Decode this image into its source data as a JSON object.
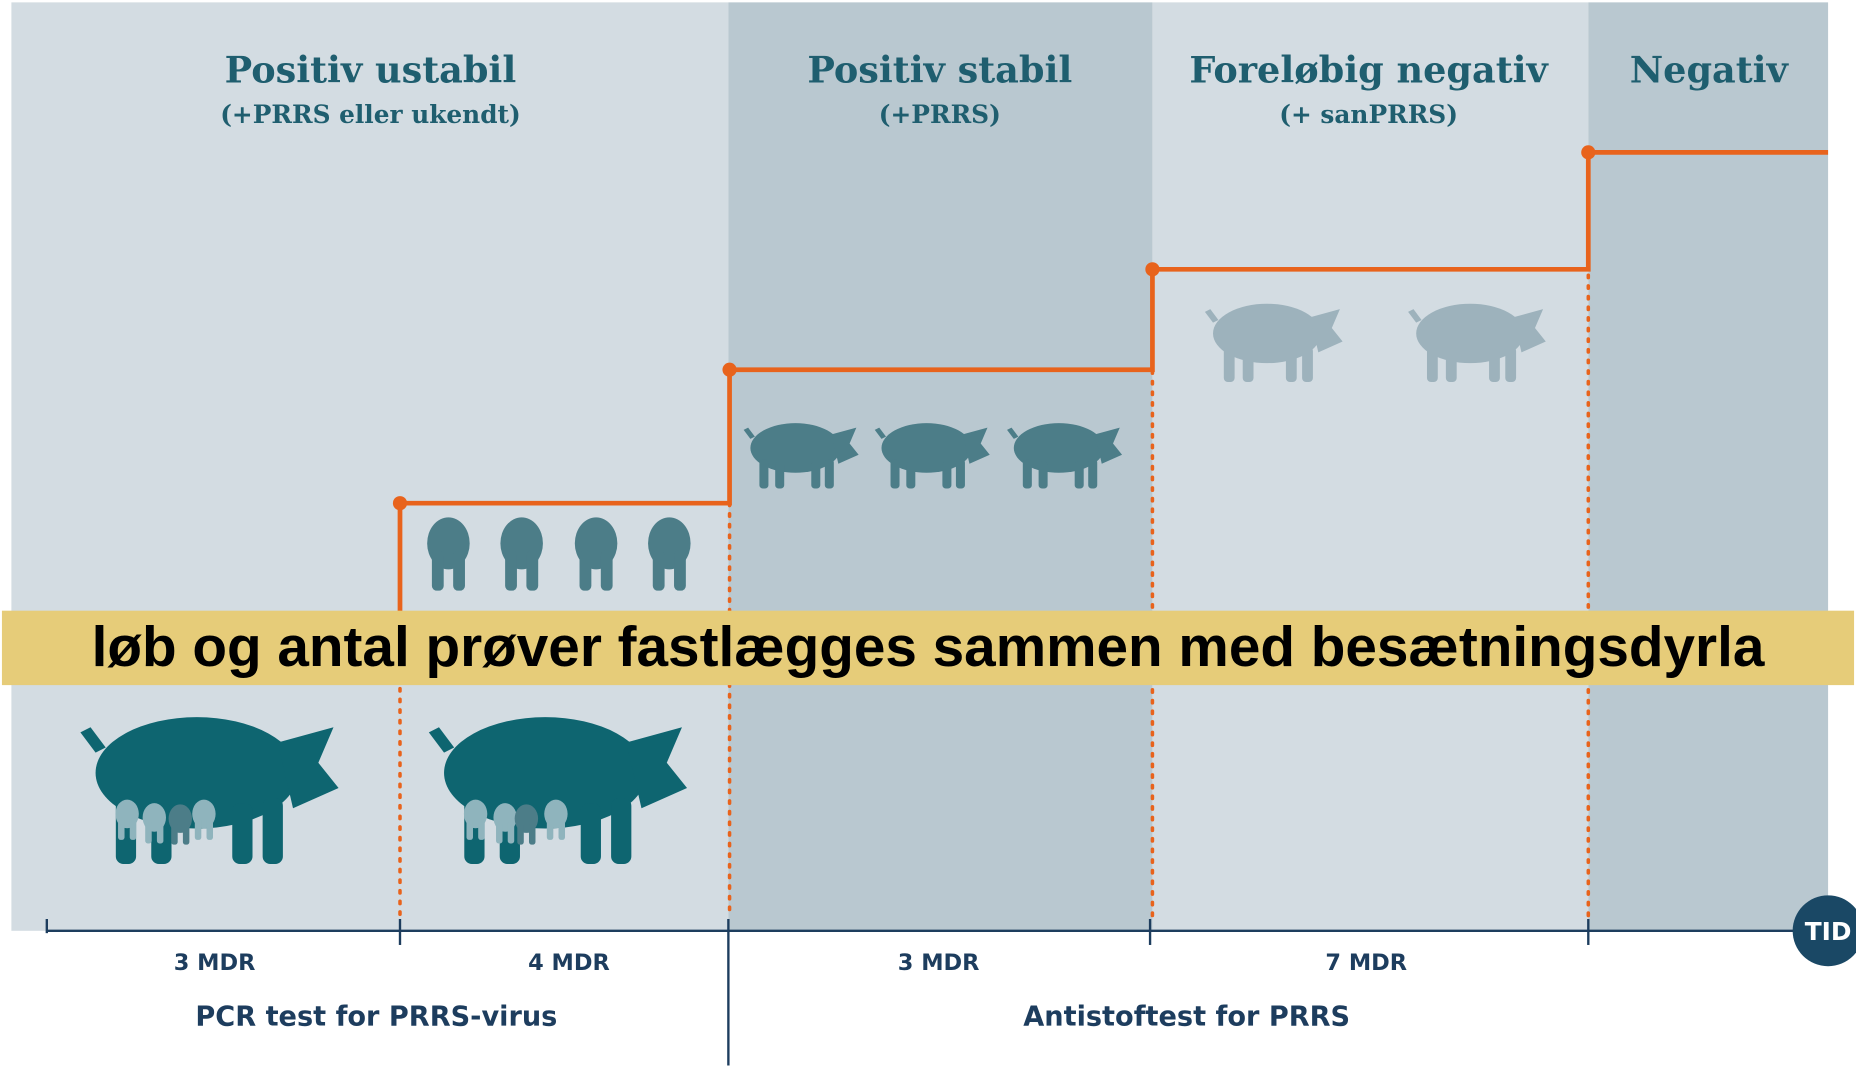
{
  "phases": [
    {
      "title": "Positiv ustabil",
      "subtitle": "(+PRRS eller ukendt)"
    },
    {
      "title": "Positiv stabil",
      "subtitle": "(+PRRS)"
    },
    {
      "title": "Foreløbig negativ",
      "subtitle": "(+ sanPRRS)"
    },
    {
      "title": "Negativ"
    }
  ],
  "durations": [
    "3 MDR",
    "4 MDR",
    "3 MDR",
    "7 MDR"
  ],
  "tests": [
    "PCR test for PRRS-virus",
    "Antistoftest for PRRS"
  ],
  "banner": "løb og antal prøver fastlægges sammen med besætningsdyrla",
  "axis_label": "TID"
}
